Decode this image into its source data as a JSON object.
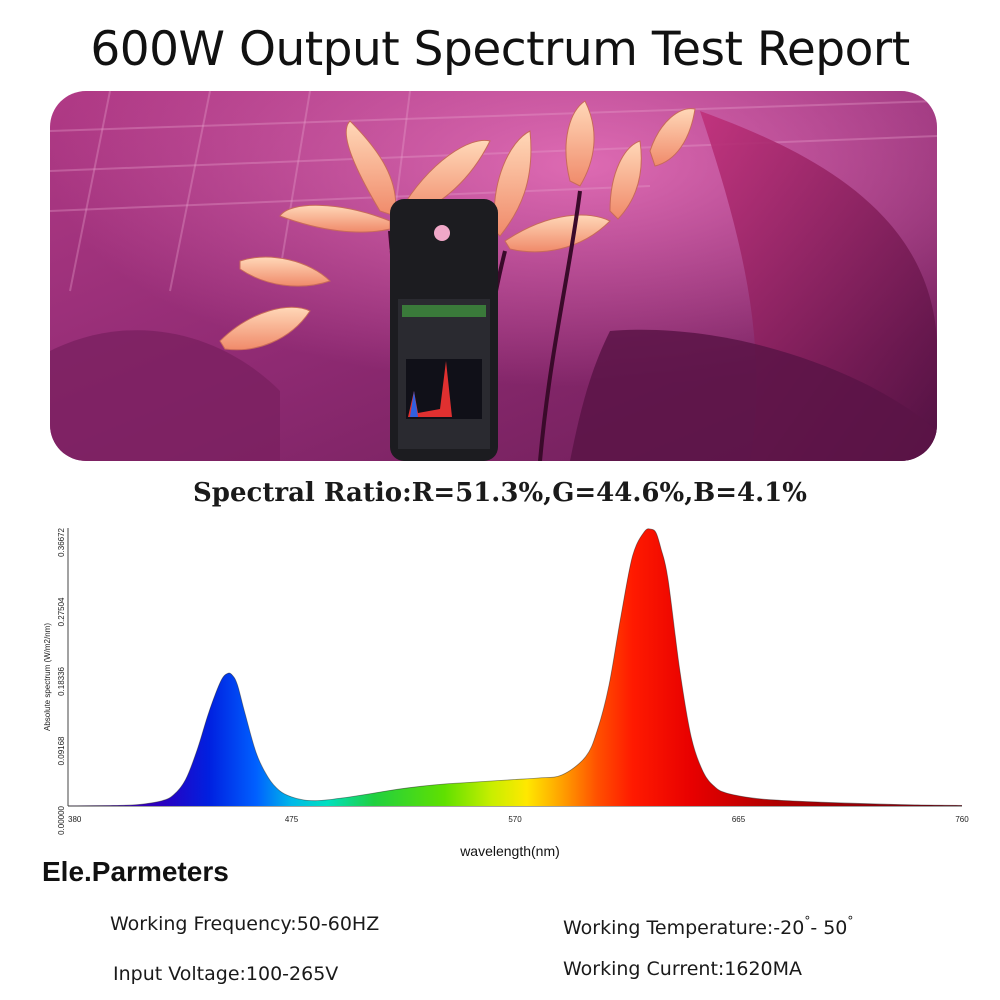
{
  "header": {
    "title": "600W Output Spectrum Test Report"
  },
  "ratio_text": "Spectral Ratio:R=51.3%,G=44.6%,B=4.1%",
  "chart_data": {
    "type": "area",
    "title": "",
    "xlabel": "wavelength(nm)",
    "ylabel": "Absolute spectrum (W/m2/nm)",
    "xlim": [
      380,
      760
    ],
    "ylim": [
      0,
      0.36672
    ],
    "x_ticks": [
      "380",
      "475",
      "570",
      "665",
      "760"
    ],
    "y_ticks": [
      "0.00000",
      "0.09168",
      "0.18336",
      "0.27504",
      "0.36672"
    ],
    "grid": false,
    "legend": "none",
    "series": [
      {
        "x": [
          380,
          400,
          410,
          420,
          425,
          430,
          435,
          440,
          445,
          448,
          450,
          452,
          455,
          460,
          465,
          470,
          475,
          480,
          485,
          490,
          495,
          500,
          510,
          520,
          530,
          540,
          550,
          560,
          570,
          580,
          590,
          600,
          605,
          610,
          615,
          620,
          625,
          628,
          630,
          632,
          635,
          640,
          645,
          650,
          655,
          660,
          670,
          680,
          700,
          720,
          740,
          760
        ],
        "y": [
          0.0,
          0.0008,
          0.002,
          0.007,
          0.015,
          0.035,
          0.075,
          0.125,
          0.165,
          0.175,
          0.172,
          0.16,
          0.125,
          0.07,
          0.038,
          0.02,
          0.012,
          0.008,
          0.007,
          0.008,
          0.01,
          0.012,
          0.017,
          0.022,
          0.026,
          0.029,
          0.031,
          0.033,
          0.035,
          0.037,
          0.041,
          0.065,
          0.1,
          0.16,
          0.25,
          0.33,
          0.362,
          0.365,
          0.36,
          0.34,
          0.3,
          0.18,
          0.09,
          0.045,
          0.025,
          0.017,
          0.011,
          0.008,
          0.005,
          0.003,
          0.0015,
          0.0008
        ]
      }
    ]
  },
  "parameters": {
    "title": "Ele.Parmeters",
    "frequency": "Working Frequency:50-60HZ",
    "voltage": "Input Voltage:100-265V",
    "temperature_label": "Working Temperature:-20",
    "temperature_mid": "- 50",
    "degree_symbol": "°",
    "current": "Working Current:1620MA"
  }
}
